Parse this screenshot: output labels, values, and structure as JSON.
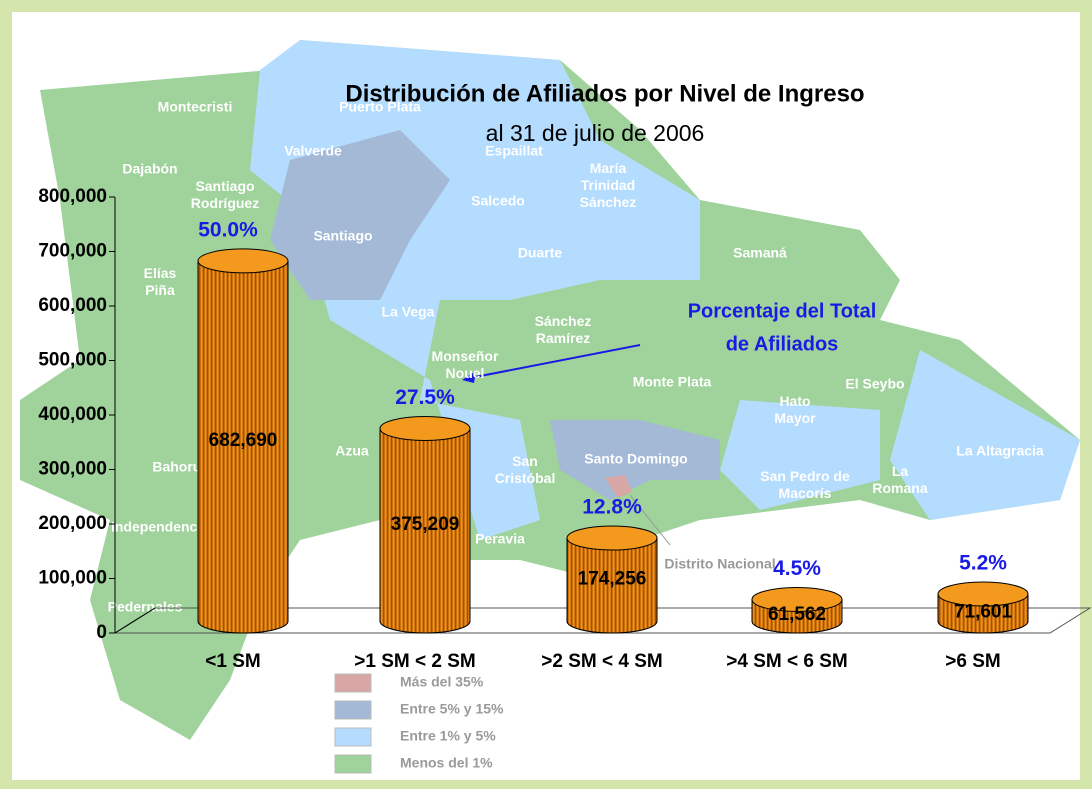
{
  "chart_data": {
    "type": "bar",
    "title": "Distribución de Afiliados por Nivel de Ingreso",
    "subtitle": "al 31 de julio de 2006",
    "categories": [
      "<1 SM",
      ">1 SM < 2 SM",
      ">2 SM < 4 SM",
      ">4 SM < 6 SM",
      ">6 SM"
    ],
    "values": [
      682690,
      375209,
      174256,
      61562,
      71601
    ],
    "value_labels": [
      "682,690",
      "375,209",
      "174,256",
      "61,562",
      "71,601"
    ],
    "percent_labels": [
      "50.0%",
      "27.5%",
      "12.8%",
      "4.5%",
      "5.2%"
    ],
    "color": "#f39a1e",
    "ylim": [
      0,
      800000
    ],
    "yticks": [
      0,
      {
        "value": 100000,
        "label": "100,000"
      },
      {
        "value": 200000,
        "label": "200,000"
      },
      {
        "value": 300000,
        "label": "300,000"
      },
      {
        "value": 400000,
        "label": "400,000"
      },
      {
        "value": 500000,
        "label": "500,000"
      },
      {
        "value": 600000,
        "label": "600,000"
      },
      {
        "value": 700000,
        "label": "700,000"
      },
      {
        "value": 800000,
        "label": "800,000"
      }
    ],
    "annotation": [
      "Porcentaje del Total",
      "de Afiliados"
    ],
    "map_legend": [
      {
        "name": "Más del 35%",
        "color": "#d9a6a6"
      },
      {
        "name": "Entre 5% y 15%",
        "color": "#a3b9d6"
      },
      {
        "name": "Entre 1% y 5%",
        "color": "#b4dcff"
      },
      {
        "name": "Menos del 1%",
        "color": "#9fd39b"
      }
    ],
    "map_labels": [
      "Montecristi",
      "Puerto Plata",
      "Dajabón",
      "Valverde",
      "Espaillat",
      "Santiago Rodríguez",
      "María Trinidad Sánchez",
      "Salcedo",
      "Santiago",
      "Duarte",
      "Samaná",
      "Elías Piña",
      "La Vega",
      "Sánchez Ramírez",
      "Monseñor Nouel",
      "Monte Plata",
      "Hato Mayor",
      "El Seybo",
      "Azua",
      "San Cristóbal",
      "Santo Domingo",
      "La Altagracia",
      "San Pedro de Macorís",
      "La Romana",
      "Bahoruco",
      "Independencia",
      "Peravia",
      "Distrito Nacional",
      "Pedernales"
    ]
  }
}
